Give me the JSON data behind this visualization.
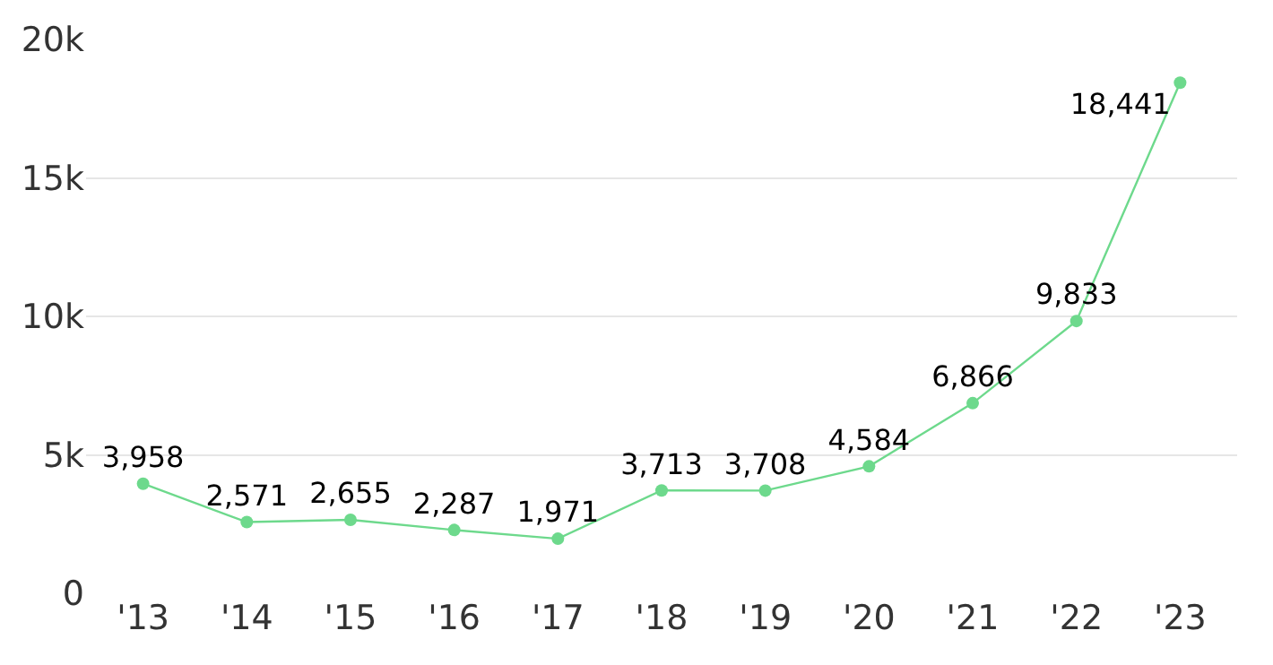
{
  "chart_data": {
    "type": "line",
    "categories": [
      "'13",
      "'14",
      "'15",
      "'16",
      "'17",
      "'18",
      "'19",
      "'20",
      "'21",
      "'22",
      "'23"
    ],
    "series": [
      {
        "color": "#6dd98c",
        "values": [
          3958,
          2571,
          2655,
          2287,
          1971,
          3713,
          3708,
          4584,
          6866,
          9833,
          18441
        ]
      }
    ],
    "value_labels": [
      "3,958",
      "2,571",
      "2,655",
      "2,287",
      "1,971",
      "3,713",
      "3,708",
      "4,584",
      "6,866",
      "9,833",
      "18,441"
    ],
    "ylim": [
      0,
      20000
    ],
    "yticks": [
      {
        "value": 0,
        "label": "0"
      },
      {
        "value": 5000,
        "label": "5k"
      },
      {
        "value": 10000,
        "label": "10k"
      },
      {
        "value": 15000,
        "label": "15k"
      },
      {
        "value": 20000,
        "label": "20k"
      }
    ],
    "grid": "y",
    "legend": false,
    "marker": "circle",
    "line_style": "solid"
  }
}
